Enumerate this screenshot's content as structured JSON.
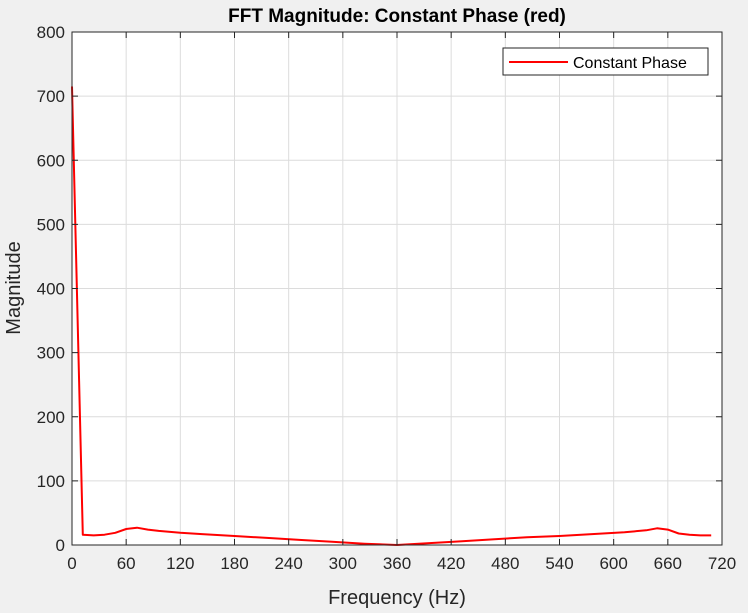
{
  "chart_data": {
    "type": "line",
    "title": "FFT Magnitude: Constant Phase (red)",
    "xlabel": "Frequency (Hz)",
    "ylabel": "Magnitude",
    "xlim": [
      0,
      720
    ],
    "ylim": [
      0,
      800
    ],
    "xticks": [
      0,
      60,
      120,
      180,
      240,
      300,
      360,
      420,
      480,
      540,
      600,
      660,
      720
    ],
    "yticks": [
      0,
      100,
      200,
      300,
      400,
      500,
      600,
      700,
      800
    ],
    "grid": true,
    "legend_position": "top-right",
    "series": [
      {
        "name": "Constant Phase",
        "color": "#ff0000",
        "x": [
          0,
          12,
          24,
          36,
          48,
          60,
          72,
          84,
          96,
          120,
          144,
          180,
          216,
          252,
          288,
          324,
          360,
          396,
          432,
          468,
          504,
          540,
          576,
          612,
          636,
          648,
          660,
          672,
          684,
          696,
          708
        ],
        "y": [
          715,
          16,
          15,
          16,
          19,
          25,
          27,
          24,
          22,
          19,
          17,
          14,
          11,
          8,
          5,
          2,
          0,
          3,
          6,
          9,
          12,
          14,
          17,
          20,
          23,
          26,
          24,
          18,
          16,
          15,
          15
        ]
      }
    ]
  }
}
